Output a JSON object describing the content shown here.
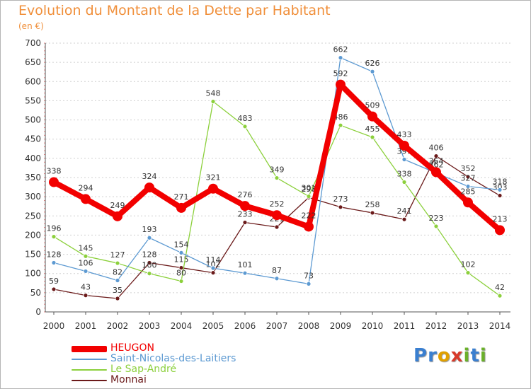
{
  "header": {
    "title": "Evolution du Montant de la Dette par Habitant",
    "subtitle": "(en €)"
  },
  "logo": {
    "letters": [
      "P",
      "r",
      "o",
      "x",
      "i",
      "t",
      "i"
    ],
    "colors": [
      "#3a7fd0",
      "#3a7fd0",
      "#e0a000",
      "#d83a2a",
      "#6ab02a",
      "#3a7fd0",
      "#6ab02a"
    ]
  },
  "chart_data": {
    "type": "line",
    "title": "Evolution du Montant de la Dette par Habitant",
    "ylabel": "(en €)",
    "xlabel": "",
    "ylim": [
      0,
      700
    ],
    "yticks": [
      0,
      50,
      100,
      150,
      200,
      250,
      300,
      350,
      400,
      450,
      500,
      550,
      600,
      650,
      700
    ],
    "categories": [
      "2000",
      "2001",
      "2002",
      "2003",
      "2004",
      "2005",
      "2006",
      "2007",
      "2008",
      "2009",
      "2010",
      "2011",
      "2012",
      "2013",
      "2014"
    ],
    "grid": "horizontal dashed",
    "legend_position": "bottom-left",
    "series": [
      {
        "name": "Monnai",
        "color": "#6b1a1a",
        "emphasis": false,
        "values": [
          59,
          43,
          35,
          128,
          115,
          102,
          233,
          221,
          298,
          273,
          258,
          241,
          406,
          352,
          303
        ],
        "labels": [
          "59",
          "43",
          "35",
          "128",
          "115",
          "102",
          "233",
          "221",
          "298",
          "273",
          "258",
          "241",
          "406",
          "352",
          "303"
        ]
      },
      {
        "name": "Le Sap-André",
        "color": "#8cd03c",
        "emphasis": false,
        "values": [
          196,
          145,
          127,
          100,
          80,
          548,
          483,
          349,
          301,
          486,
          455,
          338,
          223,
          102,
          42
        ],
        "labels": [
          "196",
          "145",
          "127",
          "100",
          "80",
          "548",
          "483",
          "349",
          "301",
          "486",
          "455",
          "338",
          "223",
          "102",
          "42"
        ]
      },
      {
        "name": "Saint-Nicolas-des-Laitiers",
        "color": "#5d9ad2",
        "emphasis": false,
        "values": [
          128,
          106,
          82,
          193,
          154,
          114,
          101,
          87,
          73,
          662,
          626,
          397,
          362,
          327,
          318
        ],
        "labels": [
          "128",
          "106",
          "82",
          "193",
          "154",
          "114",
          "101",
          "87",
          "73",
          "662",
          "626",
          "397",
          "362",
          "327",
          "318"
        ]
      },
      {
        "name": "HEUGON",
        "color": "#f20000",
        "emphasis": true,
        "values": [
          338,
          294,
          249,
          324,
          271,
          321,
          276,
          252,
          222,
          592,
          509,
          433,
          364,
          285,
          213
        ],
        "labels": [
          "338",
          "294",
          "249",
          "324",
          "271",
          "321",
          "276",
          "252",
          "222",
          "592",
          "509",
          "433",
          "364",
          "285",
          "213"
        ]
      }
    ],
    "legend": [
      {
        "name": "HEUGON",
        "color": "#f20000"
      },
      {
        "name": "Saint-Nicolas-des-Laitiers",
        "color": "#5d9ad2"
      },
      {
        "name": "Le Sap-André",
        "color": "#8cd03c"
      },
      {
        "name": "Monnai",
        "color": "#6b1a1a"
      }
    ]
  }
}
